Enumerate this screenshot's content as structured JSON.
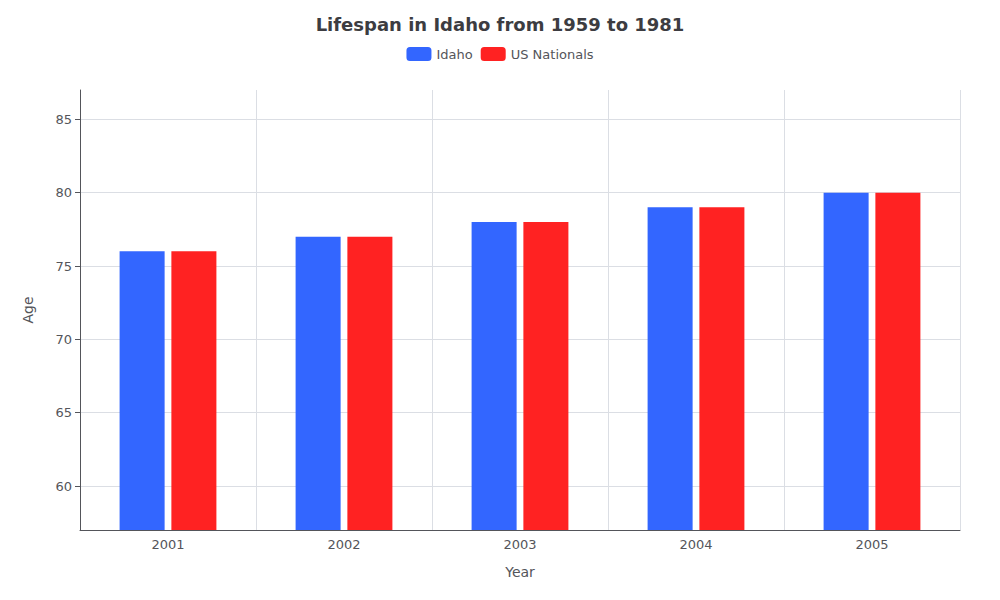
{
  "chart_data": {
    "type": "bar",
    "title": "Lifespan in Idaho from 1959 to 1981",
    "x_label": "Year",
    "y_label": "Age",
    "categories": [
      "2001",
      "2002",
      "2003",
      "2004",
      "2005"
    ],
    "series": [
      {
        "name": "Idaho",
        "color": "#3366ff",
        "values": [
          76,
          77,
          78,
          79,
          80
        ]
      },
      {
        "name": "US Nationals",
        "color": "#ff2222",
        "values": [
          76,
          77,
          78,
          79,
          80
        ]
      }
    ],
    "ylim": [
      57,
      87
    ],
    "yticks": [
      60,
      65,
      70,
      75,
      80,
      85
    ],
    "grid": true,
    "legend": "top"
  }
}
